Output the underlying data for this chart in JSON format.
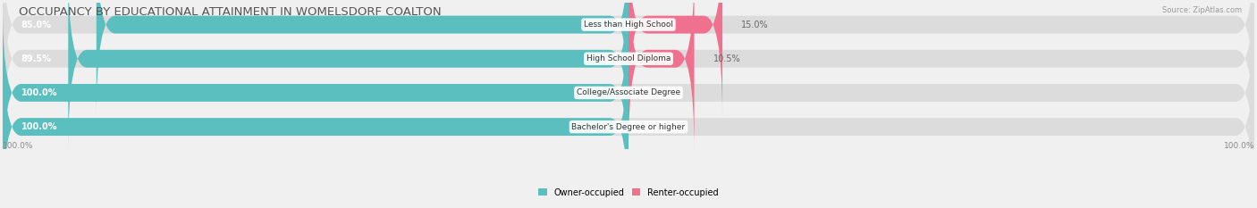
{
  "title": "OCCUPANCY BY EDUCATIONAL ATTAINMENT IN WOMELSDORF COALTON",
  "source": "Source: ZipAtlas.com",
  "categories": [
    "Less than High School",
    "High School Diploma",
    "College/Associate Degree",
    "Bachelor's Degree or higher"
  ],
  "owner_pct": [
    85.0,
    89.5,
    100.0,
    100.0
  ],
  "renter_pct": [
    15.0,
    10.5,
    0.0,
    0.0
  ],
  "owner_color": "#5BBFBF",
  "renter_color": "#F07090",
  "bg_color": "#f0f0f0",
  "bar_bg_color": "#dcdcdc",
  "title_fontsize": 9.5,
  "label_fontsize": 7.0,
  "bar_height": 0.52,
  "legend_owner": "Owner-occupied",
  "legend_renter": "Renter-occupied",
  "axis_label_left": "100.0%",
  "axis_label_right": "100.0%"
}
